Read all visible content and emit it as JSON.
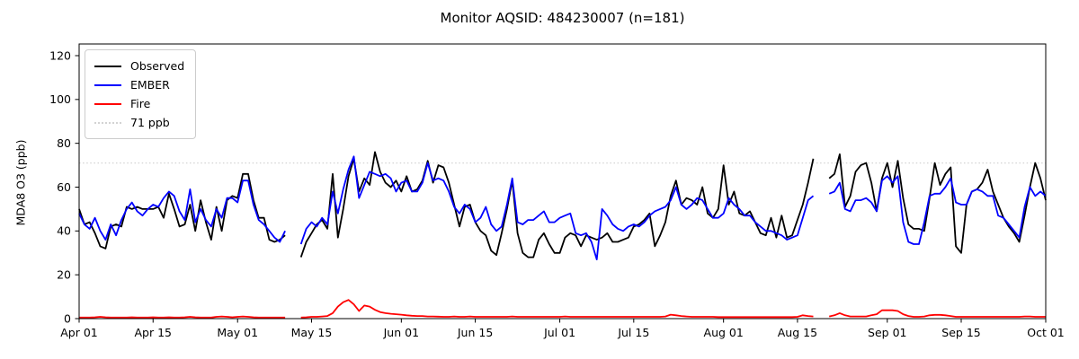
{
  "chart_data": {
    "type": "line",
    "title": "Monitor AQSID: 484230007 (n=181)",
    "ylabel": "MDA8 O3 (ppb)",
    "ylim": [
      0,
      125
    ],
    "y_ticks": [
      0,
      20,
      40,
      60,
      80,
      100,
      120
    ],
    "x_tick_positions": [
      0,
      14,
      30,
      44,
      61,
      75,
      91,
      105,
      122,
      136,
      153,
      167,
      183
    ],
    "x_tick_labels": [
      "Apr 01",
      "Apr 15",
      "May 01",
      "May 15",
      "Jun 01",
      "Jun 15",
      "Jul 01",
      "Jul 15",
      "Aug 01",
      "Aug 15",
      "Sep 01",
      "Sep 15",
      "Oct 01"
    ],
    "x_range_days": 183,
    "n_points": 184,
    "grid": false,
    "legend_position": "upper-left",
    "threshold": {
      "label": "71 ppb",
      "value": 71,
      "color": "#d3d3d3",
      "style": "dotted"
    },
    "series": [
      {
        "name": "Observed",
        "color": "#000000",
        "values": [
          50,
          43,
          44,
          39,
          33,
          32,
          42,
          43,
          42,
          51,
          50,
          51,
          50,
          50,
          50,
          51,
          46,
          57,
          50,
          42,
          43,
          52,
          40,
          54,
          44,
          36,
          51,
          40,
          54,
          56,
          55,
          66,
          66,
          54,
          46,
          46,
          36,
          35,
          36,
          38,
          null,
          null,
          28,
          35,
          39,
          43,
          45,
          41,
          66,
          37,
          50,
          65,
          73,
          58,
          64,
          61,
          76,
          67,
          62,
          60,
          63,
          58,
          65,
          58,
          59,
          63,
          72,
          62,
          70,
          69,
          62,
          52,
          42,
          51,
          52,
          44,
          40,
          38,
          31,
          29,
          39,
          50,
          63,
          39,
          30,
          28,
          28,
          36,
          39,
          34,
          30,
          30,
          37,
          39,
          38,
          33,
          38,
          37,
          36,
          37,
          39,
          35,
          35,
          36,
          37,
          42,
          43,
          45,
          48,
          33,
          38,
          44,
          56,
          63,
          52,
          55,
          54,
          52,
          60,
          48,
          46,
          50,
          70,
          52,
          58,
          48,
          47,
          49,
          44,
          39,
          38,
          46,
          37,
          47,
          37,
          38,
          45,
          52,
          62,
          73,
          null,
          null,
          64,
          66,
          75,
          51,
          56,
          67,
          70,
          71,
          62,
          49,
          64,
          71,
          60,
          72,
          55,
          43,
          41,
          41,
          40,
          55,
          71,
          61,
          66,
          69,
          33,
          30,
          52,
          58,
          59,
          62,
          68,
          58,
          52,
          46,
          42,
          39,
          35,
          47,
          60,
          71,
          64,
          54
        ]
      },
      {
        "name": "EMBER",
        "color": "#0000ff",
        "values": [
          48,
          43,
          41,
          46,
          40,
          36,
          43,
          38,
          45,
          50,
          53,
          49,
          47,
          50,
          52,
          51,
          55,
          58,
          56,
          49,
          45,
          59,
          44,
          50,
          45,
          42,
          50,
          46,
          55,
          55,
          53,
          63,
          63,
          52,
          45,
          43,
          40,
          37,
          35,
          40,
          null,
          null,
          34,
          41,
          44,
          42,
          46,
          43,
          58,
          48,
          59,
          68,
          74,
          55,
          61,
          67,
          66,
          65,
          66,
          64,
          58,
          62,
          63,
          58,
          58,
          62,
          71,
          63,
          64,
          63,
          58,
          51,
          48,
          52,
          50,
          44,
          46,
          51,
          43,
          40,
          42,
          52,
          64,
          44,
          43,
          45,
          45,
          47,
          49,
          44,
          44,
          46,
          47,
          48,
          39,
          38,
          39,
          35,
          27,
          50,
          47,
          43,
          41,
          40,
          42,
          43,
          42,
          44,
          47,
          49,
          50,
          51,
          54,
          60,
          52,
          50,
          52,
          55,
          54,
          50,
          46,
          46,
          48,
          55,
          52,
          50,
          47,
          47,
          44,
          42,
          40,
          40,
          39,
          38,
          36,
          37,
          38,
          46,
          54,
          56,
          null,
          null,
          57,
          58,
          62,
          50,
          49,
          54,
          54,
          55,
          53,
          49,
          63,
          65,
          62,
          65,
          44,
          35,
          34,
          34,
          44,
          56,
          57,
          57,
          60,
          64,
          53,
          52,
          52,
          58,
          59,
          58,
          56,
          56,
          47,
          46,
          43,
          40,
          37,
          51,
          60,
          56,
          58,
          56
        ]
      },
      {
        "name": "Fire",
        "color": "#ff0000",
        "values": [
          0.5,
          0.5,
          0.5,
          0.6,
          0.8,
          0.6,
          0.5,
          0.5,
          0.5,
          0.5,
          0.6,
          0.5,
          0.5,
          0.5,
          0.6,
          0.5,
          0.5,
          0.6,
          0.5,
          0.5,
          0.6,
          0.8,
          0.6,
          0.5,
          0.5,
          0.5,
          0.8,
          1.0,
          0.8,
          0.6,
          0.8,
          1.0,
          0.8,
          0.6,
          0.5,
          0.5,
          0.5,
          0.5,
          0.5,
          0.5,
          null,
          null,
          0.5,
          0.6,
          0.8,
          0.8,
          1.0,
          1.2,
          2.5,
          5.5,
          7.5,
          8.5,
          6.5,
          3.5,
          6.0,
          5.5,
          4.0,
          3.0,
          2.5,
          2.2,
          2.0,
          1.8,
          1.5,
          1.3,
          1.2,
          1.2,
          1.0,
          1.0,
          0.9,
          0.8,
          0.8,
          1.0,
          0.8,
          0.8,
          1.0,
          0.8,
          0.8,
          0.8,
          0.8,
          0.8,
          0.8,
          0.8,
          1.0,
          0.8,
          0.8,
          0.8,
          0.8,
          0.8,
          0.8,
          0.8,
          0.8,
          0.8,
          1.0,
          0.8,
          0.8,
          0.8,
          0.8,
          0.8,
          0.8,
          0.8,
          0.8,
          0.8,
          0.8,
          0.8,
          0.8,
          0.8,
          0.8,
          0.8,
          0.8,
          0.8,
          0.8,
          1.0,
          1.8,
          1.5,
          1.2,
          1.0,
          0.8,
          0.8,
          0.8,
          0.8,
          0.8,
          0.7,
          0.7,
          0.7,
          0.7,
          0.7,
          0.7,
          0.7,
          0.7,
          0.7,
          0.7,
          0.7,
          0.7,
          0.7,
          0.7,
          0.7,
          0.8,
          1.5,
          1.2,
          1.0,
          null,
          null,
          1.0,
          1.5,
          2.5,
          1.5,
          1.0,
          1.0,
          1.0,
          1.0,
          1.5,
          2.0,
          3.8,
          3.8,
          3.8,
          3.5,
          2.0,
          1.2,
          0.8,
          0.8,
          1.0,
          1.5,
          1.7,
          1.7,
          1.5,
          1.2,
          0.8,
          0.8,
          0.8,
          0.8,
          0.8,
          0.8,
          0.8,
          0.8,
          0.8,
          0.8,
          0.8,
          0.8,
          0.8,
          1.0,
          1.0,
          0.8,
          0.8,
          0.8
        ]
      }
    ]
  }
}
